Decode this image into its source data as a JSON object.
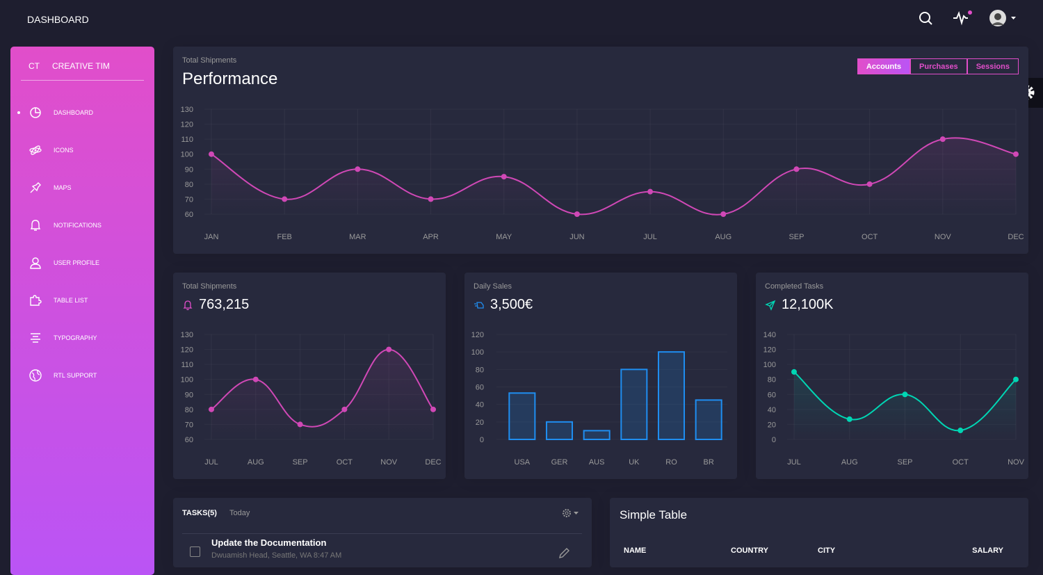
{
  "navbar": {
    "title": "DASHBOARD"
  },
  "sidebar": {
    "logo_mini": "CT",
    "logo": "CREATIVE TIM",
    "items": [
      "DASHBOARD",
      "ICONS",
      "MAPS",
      "NOTIFICATIONS",
      "USER PROFILE",
      "TABLE LIST",
      "TYPOGRAPHY",
      "RTL SUPPORT"
    ]
  },
  "chart_data": [
    {
      "type": "line",
      "subtitle": "Total Shipments",
      "title": "Performance",
      "tabs": [
        "Accounts",
        "Purchases",
        "Sessions"
      ],
      "categories": [
        "JAN",
        "FEB",
        "MAR",
        "APR",
        "MAY",
        "JUN",
        "JUL",
        "AUG",
        "SEP",
        "OCT",
        "NOV",
        "DEC"
      ],
      "values": [
        100,
        70,
        90,
        70,
        85,
        60,
        75,
        60,
        90,
        80,
        110,
        100
      ],
      "color": "#d048b6",
      "ylim": [
        60,
        130
      ],
      "yticks": [
        60,
        70,
        80,
        90,
        100,
        110,
        120,
        130
      ]
    },
    {
      "type": "line",
      "subtitle": "Total Shipments",
      "title": "763,215",
      "categories": [
        "JUL",
        "AUG",
        "SEP",
        "OCT",
        "NOV",
        "DEC"
      ],
      "values": [
        80,
        100,
        70,
        80,
        120,
        80
      ],
      "color": "#d048b6",
      "ylim": [
        60,
        130
      ],
      "yticks": [
        60,
        70,
        80,
        90,
        100,
        110,
        120,
        130
      ]
    },
    {
      "type": "bar",
      "subtitle": "Daily Sales",
      "title": "3,500€",
      "categories": [
        "USA",
        "GER",
        "AUS",
        "UK",
        "RO",
        "BR"
      ],
      "values": [
        53,
        20,
        10,
        80,
        100,
        45
      ],
      "color": "#1f8ef1",
      "ylim": [
        0,
        120
      ],
      "yticks": [
        0,
        20,
        40,
        60,
        80,
        100,
        120
      ]
    },
    {
      "type": "line",
      "subtitle": "Completed Tasks",
      "title": "12,100K",
      "categories": [
        "JUL",
        "AUG",
        "SEP",
        "OCT",
        "NOV"
      ],
      "values": [
        90,
        27,
        60,
        12,
        80
      ],
      "color": "#00d6b4",
      "ylim": [
        0,
        140
      ],
      "yticks": [
        0,
        20,
        40,
        60,
        80,
        100,
        120,
        140
      ]
    }
  ],
  "tasks": {
    "title": "TASKS(5)",
    "filter": "Today",
    "items": [
      {
        "title": "Update the Documentation",
        "text": "Dwuamish Head, Seattle, WA 8:47 AM"
      }
    ]
  },
  "table": {
    "title": "Simple Table",
    "columns": [
      "NAME",
      "COUNTRY",
      "CITY",
      "SALARY"
    ]
  }
}
